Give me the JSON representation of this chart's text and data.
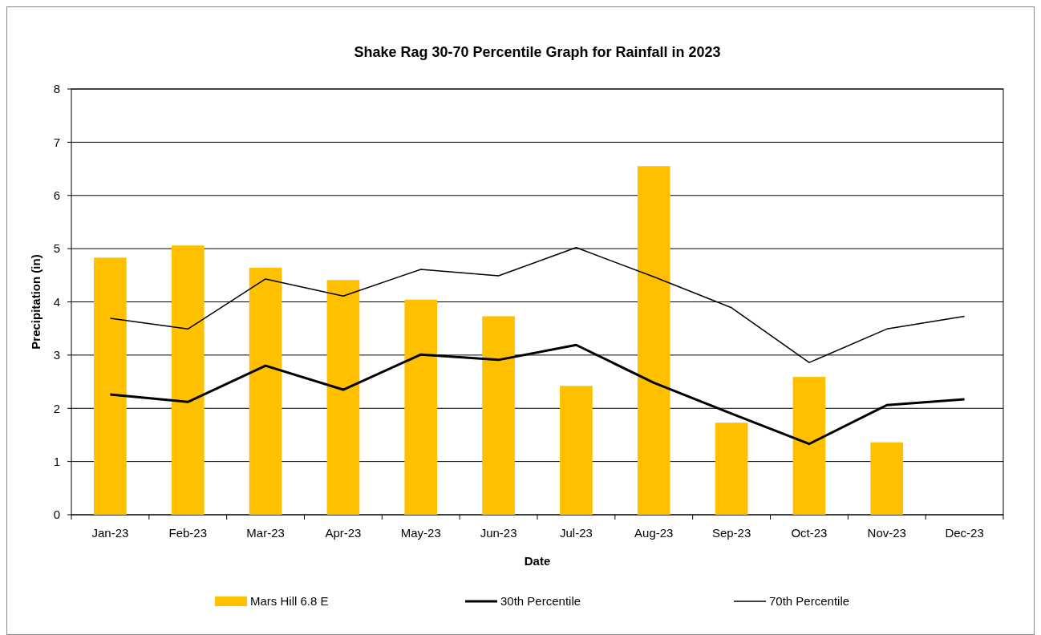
{
  "chart_data": {
    "type": "bar",
    "title": "Shake Rag 30-70 Percentile Graph for Rainfall in 2023",
    "xlabel": "Date",
    "ylabel": "Precipitation (in)",
    "categories": [
      "Jan-23",
      "Feb-23",
      "Mar-23",
      "Apr-23",
      "May-23",
      "Jun-23",
      "Jul-23",
      "Aug-23",
      "Sep-23",
      "Oct-23",
      "Nov-23",
      "Dec-23"
    ],
    "series": [
      {
        "name": "Mars Hill 6.8 E",
        "color": "#ffc000",
        "values": [
          4.83,
          5.06,
          4.64,
          4.41,
          4.04,
          3.73,
          2.42,
          6.55,
          1.73,
          2.59,
          1.36,
          null
        ]
      },
      {
        "name": "30th Percentile",
        "type": "line",
        "color": "#000000",
        "values": [
          2.26,
          2.12,
          2.8,
          2.35,
          3.01,
          2.91,
          3.19,
          2.48,
          1.9,
          1.33,
          2.06,
          2.17
        ]
      },
      {
        "name": "70th Percentile",
        "type": "line",
        "color": "#000000",
        "values": [
          3.69,
          3.49,
          4.43,
          4.11,
          4.61,
          4.49,
          5.02,
          4.47,
          3.89,
          2.86,
          3.49,
          3.73
        ]
      }
    ],
    "ylim": [
      0,
      8
    ],
    "yticks": [
      0,
      1,
      2,
      3,
      4,
      5,
      6,
      7,
      8
    ],
    "grid": "y",
    "legend": "bottom",
    "marker": "none",
    "line_style": "solid"
  }
}
